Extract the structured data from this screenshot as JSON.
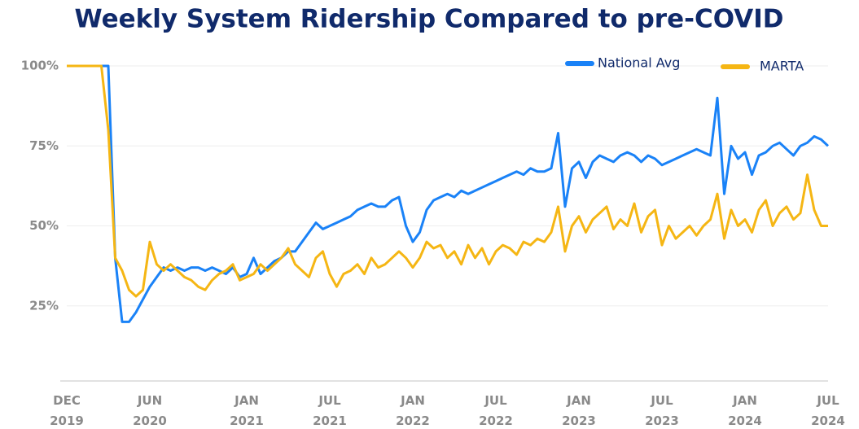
{
  "chart_data": {
    "type": "line",
    "title": "Weekly System Ridership Compared to pre-COVID",
    "categories": [
      "DEC 2019",
      null,
      null,
      null,
      null,
      null,
      null,
      null,
      null,
      null,
      null,
      null,
      "JUN 2020",
      null,
      null,
      null,
      null,
      null,
      null,
      null,
      null,
      null,
      null,
      null,
      null,
      null,
      "JAN 2021",
      null,
      null,
      null,
      null,
      null,
      null,
      null,
      null,
      null,
      null,
      null,
      "JUL 2021",
      null,
      null,
      null,
      null,
      null,
      null,
      null,
      null,
      null,
      null,
      null,
      "JAN 2022",
      null,
      null,
      null,
      null,
      null,
      null,
      null,
      null,
      null,
      null,
      null,
      "JUL 2022",
      null,
      null,
      null,
      null,
      null,
      null,
      null,
      null,
      null,
      null,
      null,
      "JAN 2023",
      null,
      null,
      null,
      null,
      null,
      null,
      null,
      null,
      null,
      null,
      null,
      "JUL 2023",
      null,
      null,
      null,
      null,
      null,
      null,
      null,
      null,
      null,
      null,
      null,
      "JAN 2024",
      null,
      null,
      null,
      null,
      null,
      null,
      null,
      null,
      null,
      null,
      null,
      "JUL 2024"
    ],
    "series": [
      {
        "name": "National Avg",
        "color": "#1a82f7",
        "values": [
          100,
          100,
          100,
          100,
          100,
          100,
          100,
          40,
          20,
          20,
          23,
          27,
          31,
          34,
          37,
          36,
          37,
          36,
          37,
          37,
          36,
          37,
          36,
          35,
          37,
          34,
          35,
          40,
          35,
          37,
          39,
          40,
          42,
          42,
          45,
          48,
          51,
          49,
          50,
          51,
          52,
          53,
          55,
          56,
          57,
          56,
          56,
          58,
          59,
          50,
          45,
          48,
          55,
          58,
          59,
          60,
          59,
          61,
          60,
          61,
          62,
          63,
          64,
          65,
          66,
          67,
          66,
          68,
          67,
          67,
          68,
          79,
          56,
          68,
          70,
          65,
          70,
          72,
          71,
          70,
          72,
          73,
          72,
          70,
          72,
          71,
          69,
          70,
          71,
          72,
          73,
          74,
          73,
          72,
          90,
          60,
          75,
          71,
          73,
          66,
          72,
          73,
          75,
          76,
          74,
          72,
          75,
          76,
          78,
          77,
          75
        ]
      },
      {
        "name": "MARTA",
        "color": "#f5b614",
        "values": [
          100,
          100,
          100,
          100,
          100,
          100,
          80,
          40,
          36,
          30,
          28,
          30,
          45,
          38,
          36,
          38,
          36,
          34,
          33,
          31,
          30,
          33,
          35,
          36,
          38,
          33,
          34,
          35,
          38,
          36,
          38,
          40,
          43,
          38,
          36,
          34,
          40,
          42,
          35,
          31,
          35,
          36,
          38,
          35,
          40,
          37,
          38,
          40,
          42,
          40,
          37,
          40,
          45,
          43,
          44,
          40,
          42,
          38,
          44,
          40,
          43,
          38,
          42,
          44,
          43,
          41,
          45,
          44,
          46,
          45,
          48,
          56,
          42,
          50,
          53,
          48,
          52,
          54,
          56,
          49,
          52,
          50,
          57,
          48,
          53,
          55,
          44,
          50,
          46,
          48,
          50,
          47,
          50,
          52,
          60,
          46,
          55,
          50,
          52,
          48,
          55,
          58,
          50,
          54,
          56,
          52,
          54,
          66,
          55,
          50,
          50
        ]
      }
    ],
    "ylim": [
      0,
      100
    ],
    "yticks": [
      {
        "value": 25,
        "label": "25%"
      },
      {
        "value": 50,
        "label": "50%"
      },
      {
        "value": 75,
        "label": "75%"
      },
      {
        "value": 100,
        "label": "100%"
      }
    ],
    "grid": true,
    "legend": "top-right"
  }
}
